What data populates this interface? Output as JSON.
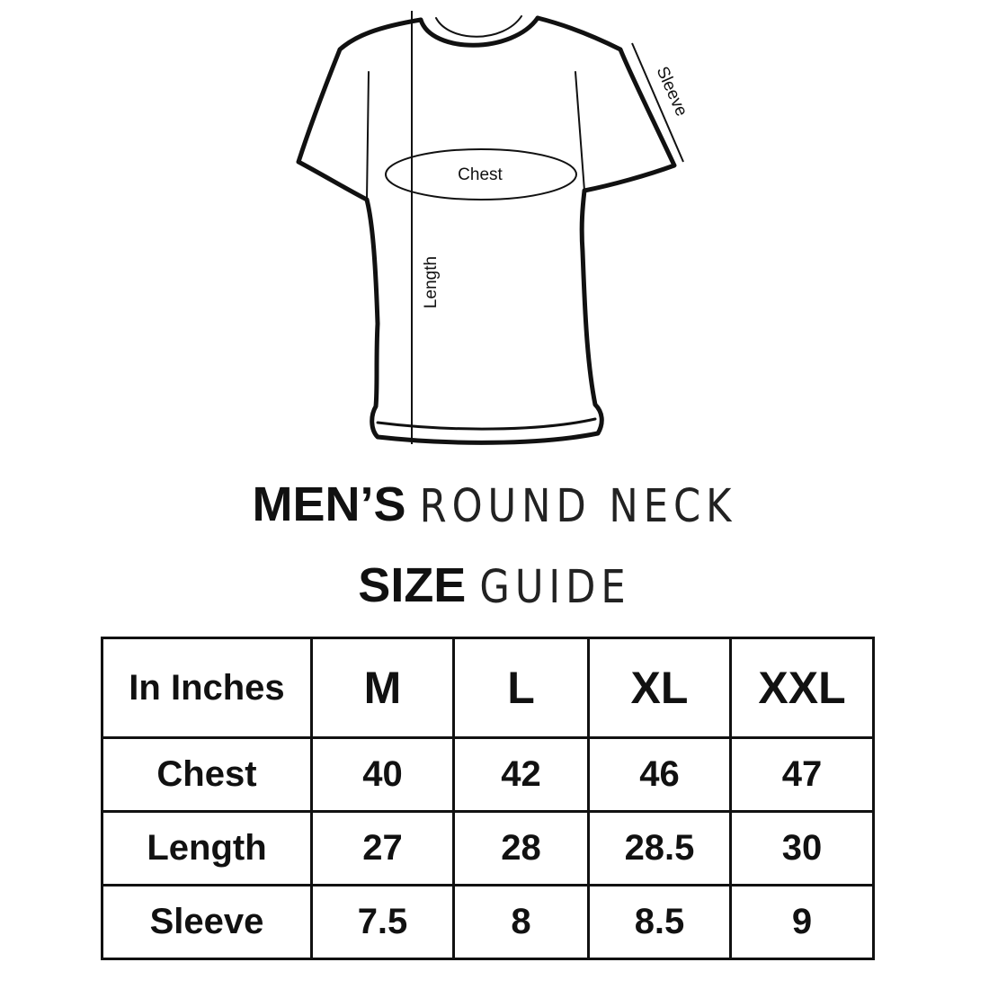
{
  "diagram": {
    "labels": {
      "chest": "Chest",
      "length": "Length",
      "sleeve": "Sleeve"
    }
  },
  "title": {
    "line1_bold": "MEN’S",
    "line1_light": "ROUND NECK",
    "line2_bold": "SIZE",
    "line2_light": "GUIDE"
  },
  "table": {
    "corner": "In Inches",
    "sizes": [
      "M",
      "L",
      "XL",
      "XXL"
    ],
    "rows": [
      {
        "label": "Chest",
        "values": [
          "40",
          "42",
          "46",
          "47"
        ]
      },
      {
        "label": "Length",
        "values": [
          "27",
          "28",
          "28.5",
          "30"
        ]
      },
      {
        "label": "Sleeve",
        "values": [
          "7.5",
          "8",
          "8.5",
          "9"
        ]
      }
    ]
  }
}
